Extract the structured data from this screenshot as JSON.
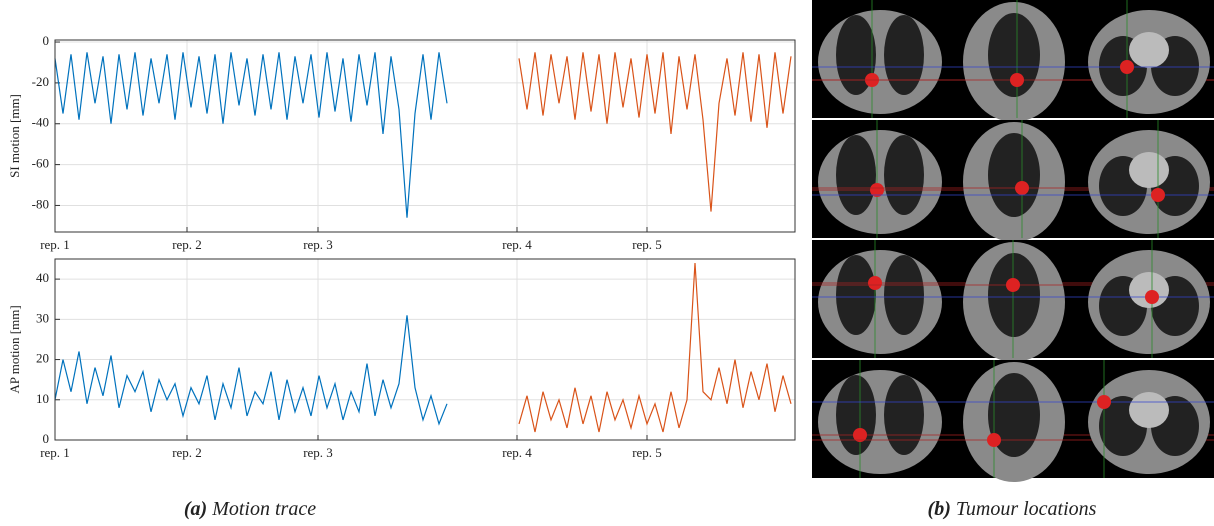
{
  "chart_data": [
    {
      "type": "line",
      "y_label": "SI motion [mm]",
      "x": [
        0,
        8,
        16,
        24,
        32,
        40,
        48,
        56,
        64,
        72,
        80,
        88,
        96,
        104,
        112,
        120,
        128,
        136,
        144,
        152,
        160,
        168,
        176,
        184,
        192,
        200,
        208,
        216,
        224,
        232,
        240,
        248,
        256,
        264,
        272,
        280,
        288,
        296,
        304,
        312,
        320,
        328,
        336,
        344,
        352,
        360,
        368,
        376,
        384,
        392,
        400,
        408,
        416,
        424,
        432,
        440,
        448,
        456,
        464,
        472,
        480,
        488,
        496,
        504,
        512,
        520,
        528,
        536,
        544,
        552,
        560,
        568,
        576,
        584,
        592,
        600,
        608,
        616,
        624,
        632,
        640,
        648,
        656,
        664,
        672,
        680,
        688,
        696,
        704,
        712,
        720,
        728,
        736
      ],
      "xlim": [
        0,
        740
      ],
      "xticks": [
        {
          "value": 0,
          "label": "rep. 1"
        },
        {
          "value": 132,
          "label": "rep. 2"
        },
        {
          "value": 263,
          "label": "rep. 3"
        },
        {
          "value": 462,
          "label": "rep. 4"
        },
        {
          "value": 592,
          "label": "rep. 5"
        }
      ],
      "ylim": [
        -93,
        1
      ],
      "yticks": [
        0,
        -20,
        -40,
        -60,
        -80
      ],
      "grid": true,
      "series": [
        {
          "color": "#0072bd",
          "values": [
            -8,
            -35,
            -6,
            -38,
            -5,
            -30,
            -7,
            -40,
            -6,
            -33,
            -5,
            -36,
            -8,
            -30,
            -6,
            -38,
            -5,
            -32,
            -7,
            -35,
            -6,
            -40,
            -5,
            -31,
            -8,
            -36,
            -6,
            -33,
            -5,
            -38,
            -7,
            -30,
            -6,
            -37,
            -5,
            -34,
            -8,
            -39,
            -6,
            -31,
            -5,
            -45,
            -7,
            -33,
            -86,
            -35,
            -6,
            -38,
            -5,
            -30,
            null,
            null,
            null,
            null,
            null,
            null,
            null,
            null,
            null,
            null,
            null,
            null,
            null,
            null,
            null,
            null,
            null,
            null,
            null,
            null,
            null,
            null,
            null,
            null,
            null,
            null,
            null,
            null,
            null,
            null,
            null,
            null,
            null,
            null,
            null,
            null,
            null,
            null,
            null,
            null,
            null,
            null,
            null
          ]
        },
        {
          "color": "#d95319",
          "values": [
            null,
            null,
            null,
            null,
            null,
            null,
            null,
            null,
            null,
            null,
            null,
            null,
            null,
            null,
            null,
            null,
            null,
            null,
            null,
            null,
            null,
            null,
            null,
            null,
            null,
            null,
            null,
            null,
            null,
            null,
            null,
            null,
            null,
            null,
            null,
            null,
            null,
            null,
            null,
            null,
            null,
            null,
            null,
            null,
            null,
            null,
            null,
            null,
            null,
            null,
            null,
            null,
            null,
            null,
            null,
            null,
            null,
            null,
            -8,
            -33,
            -5,
            -36,
            -6,
            -30,
            -7,
            -38,
            -5,
            -34,
            -6,
            -40,
            -5,
            -32,
            -8,
            -37,
            -6,
            -35,
            -5,
            -45,
            -7,
            -33,
            -6,
            -38,
            -83,
            -30,
            -8,
            -36,
            -5,
            -39,
            -6,
            -42,
            -5,
            -35,
            -7
          ]
        }
      ]
    },
    {
      "type": "line",
      "y_label": "AP motion [mm]",
      "x": [
        0,
        8,
        16,
        24,
        32,
        40,
        48,
        56,
        64,
        72,
        80,
        88,
        96,
        104,
        112,
        120,
        128,
        136,
        144,
        152,
        160,
        168,
        176,
        184,
        192,
        200,
        208,
        216,
        224,
        232,
        240,
        248,
        256,
        264,
        272,
        280,
        288,
        296,
        304,
        312,
        320,
        328,
        336,
        344,
        352,
        360,
        368,
        376,
        384,
        392,
        400,
        408,
        416,
        424,
        432,
        440,
        448,
        456,
        464,
        472,
        480,
        488,
        496,
        504,
        512,
        520,
        528,
        536,
        544,
        552,
        560,
        568,
        576,
        584,
        592,
        600,
        608,
        616,
        624,
        632,
        640,
        648,
        656,
        664,
        672,
        680,
        688,
        696,
        704,
        712,
        720,
        728,
        736
      ],
      "xlim": [
        0,
        740
      ],
      "xticks": [
        {
          "value": 0,
          "label": "rep. 1"
        },
        {
          "value": 132,
          "label": "rep. 2"
        },
        {
          "value": 263,
          "label": "rep. 3"
        },
        {
          "value": 462,
          "label": "rep. 4"
        },
        {
          "value": 592,
          "label": "rep. 5"
        }
      ],
      "ylim": [
        0,
        45
      ],
      "yticks": [
        0,
        10,
        20,
        30,
        40
      ],
      "grid": true,
      "series": [
        {
          "color": "#0072bd",
          "values": [
            10,
            20,
            12,
            22,
            9,
            18,
            11,
            21,
            8,
            16,
            12,
            17,
            7,
            15,
            10,
            14,
            6,
            13,
            9,
            16,
            5,
            14,
            8,
            18,
            6,
            12,
            9,
            17,
            5,
            15,
            7,
            13,
            6,
            16,
            8,
            14,
            5,
            12,
            7,
            19,
            6,
            15,
            8,
            14,
            31,
            13,
            5,
            11,
            4,
            9,
            null,
            null,
            null,
            null,
            null,
            null,
            null,
            null,
            null,
            null,
            null,
            null,
            null,
            null,
            null,
            null,
            null,
            null,
            null,
            null,
            null,
            null,
            null,
            null,
            null,
            null,
            null,
            null,
            null,
            null,
            null,
            null,
            null,
            null,
            null,
            null,
            null,
            null,
            null,
            null,
            null,
            null,
            null
          ]
        },
        {
          "color": "#d95319",
          "values": [
            null,
            null,
            null,
            null,
            null,
            null,
            null,
            null,
            null,
            null,
            null,
            null,
            null,
            null,
            null,
            null,
            null,
            null,
            null,
            null,
            null,
            null,
            null,
            null,
            null,
            null,
            null,
            null,
            null,
            null,
            null,
            null,
            null,
            null,
            null,
            null,
            null,
            null,
            null,
            null,
            null,
            null,
            null,
            null,
            null,
            null,
            null,
            null,
            null,
            null,
            null,
            null,
            null,
            null,
            null,
            null,
            null,
            null,
            4,
            11,
            2,
            12,
            5,
            10,
            3,
            13,
            4,
            11,
            2,
            12,
            5,
            10,
            3,
            11,
            4,
            9,
            2,
            12,
            3,
            10,
            44,
            12,
            10,
            18,
            9,
            20,
            8,
            17,
            10,
            19,
            7,
            16,
            9
          ]
        }
      ]
    }
  ],
  "captions": [
    {
      "label": "(a)",
      "text": "Motion trace"
    },
    {
      "label": "(b)",
      "text": "Tumour locations"
    }
  ]
}
